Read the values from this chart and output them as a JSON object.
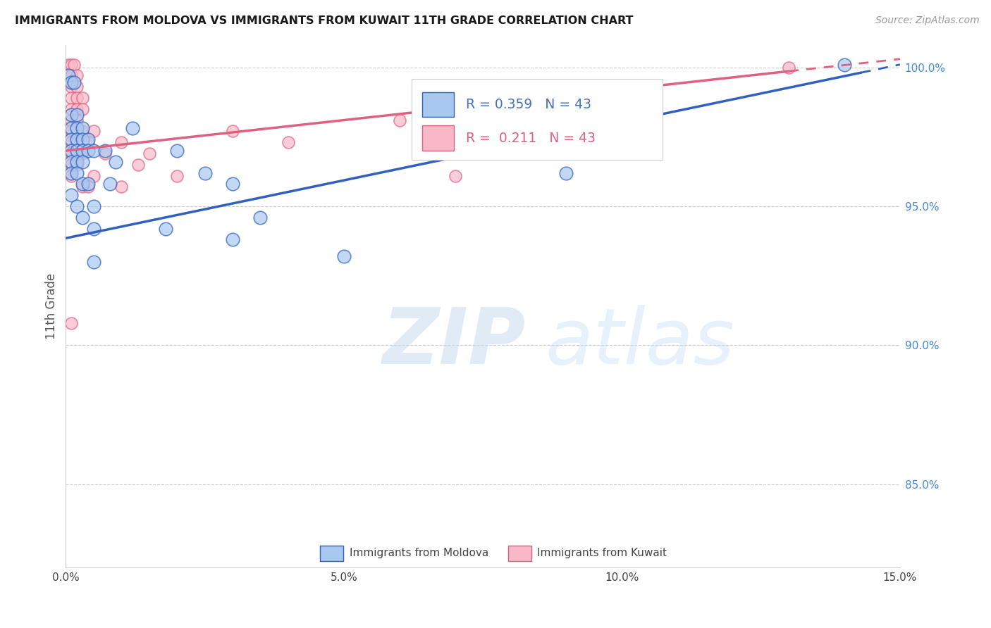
{
  "title": "IMMIGRANTS FROM MOLDOVA VS IMMIGRANTS FROM KUWAIT 11TH GRADE CORRELATION CHART",
  "source": "Source: ZipAtlas.com",
  "ylabel": "11th Grade",
  "x_min": 0.0,
  "x_max": 0.15,
  "y_min": 0.82,
  "y_max": 1.008,
  "x_ticks": [
    0.0,
    0.025,
    0.05,
    0.075,
    0.1,
    0.125,
    0.15
  ],
  "x_tick_labels": [
    "0.0%",
    "",
    "5.0%",
    "",
    "10.0%",
    "",
    "15.0%"
  ],
  "y_ticks": [
    0.85,
    0.9,
    0.95,
    1.0
  ],
  "y_tick_labels": [
    "85.0%",
    "90.0%",
    "95.0%",
    "100.0%"
  ],
  "moldova_color": "#A8C8F0",
  "kuwait_color": "#F8B8C8",
  "line_moldova_color": "#3060C0",
  "line_kuwait_color": "#E06080",
  "R_moldova": 0.359,
  "N_moldova": 43,
  "R_kuwait": 0.211,
  "N_kuwait": 43,
  "legend_moldova": "Immigrants from Moldova",
  "legend_kuwait": "Immigrants from Kuwait",
  "background_color": "#ffffff",
  "watermark_zip": "ZIP",
  "watermark_atlas": "atlas",
  "moldova_line_x0": 0.0,
  "moldova_line_y0": 0.9385,
  "moldova_line_x1": 0.15,
  "moldova_line_y1": 1.001,
  "moldova_line_solid_x1": 0.143,
  "kuwait_line_x0": 0.0,
  "kuwait_line_y0": 0.97,
  "kuwait_line_x1": 0.15,
  "kuwait_line_y1": 1.003,
  "kuwait_line_solid_x1": 0.13,
  "moldova_points": [
    [
      0.0005,
      0.997
    ],
    [
      0.001,
      0.9945
    ],
    [
      0.0015,
      0.9945
    ],
    [
      0.001,
      0.983
    ],
    [
      0.002,
      0.983
    ],
    [
      0.001,
      0.978
    ],
    [
      0.002,
      0.978
    ],
    [
      0.003,
      0.978
    ],
    [
      0.001,
      0.974
    ],
    [
      0.002,
      0.974
    ],
    [
      0.003,
      0.974
    ],
    [
      0.004,
      0.974
    ],
    [
      0.001,
      0.97
    ],
    [
      0.002,
      0.97
    ],
    [
      0.003,
      0.97
    ],
    [
      0.004,
      0.97
    ],
    [
      0.005,
      0.97
    ],
    [
      0.001,
      0.966
    ],
    [
      0.002,
      0.966
    ],
    [
      0.003,
      0.966
    ],
    [
      0.001,
      0.962
    ],
    [
      0.002,
      0.962
    ],
    [
      0.003,
      0.958
    ],
    [
      0.004,
      0.958
    ],
    [
      0.001,
      0.954
    ],
    [
      0.002,
      0.95
    ],
    [
      0.005,
      0.95
    ],
    [
      0.003,
      0.946
    ],
    [
      0.005,
      0.942
    ],
    [
      0.007,
      0.97
    ],
    [
      0.009,
      0.966
    ],
    [
      0.012,
      0.978
    ],
    [
      0.02,
      0.97
    ],
    [
      0.025,
      0.962
    ],
    [
      0.03,
      0.958
    ],
    [
      0.035,
      0.946
    ],
    [
      0.03,
      0.938
    ],
    [
      0.005,
      0.93
    ],
    [
      0.018,
      0.942
    ],
    [
      0.008,
      0.958
    ],
    [
      0.05,
      0.932
    ],
    [
      0.09,
      0.962
    ],
    [
      0.14,
      1.001
    ]
  ],
  "kuwait_points": [
    [
      0.0005,
      1.001
    ],
    [
      0.001,
      1.001
    ],
    [
      0.0015,
      1.001
    ],
    [
      0.001,
      0.997
    ],
    [
      0.002,
      0.997
    ],
    [
      0.001,
      0.993
    ],
    [
      0.002,
      0.993
    ],
    [
      0.001,
      0.989
    ],
    [
      0.002,
      0.989
    ],
    [
      0.003,
      0.989
    ],
    [
      0.001,
      0.985
    ],
    [
      0.002,
      0.985
    ],
    [
      0.003,
      0.985
    ],
    [
      0.001,
      0.981
    ],
    [
      0.002,
      0.981
    ],
    [
      0.001,
      0.977
    ],
    [
      0.003,
      0.977
    ],
    [
      0.005,
      0.977
    ],
    [
      0.001,
      0.973
    ],
    [
      0.002,
      0.973
    ],
    [
      0.004,
      0.973
    ],
    [
      0.001,
      0.969
    ],
    [
      0.002,
      0.969
    ],
    [
      0.003,
      0.969
    ],
    [
      0.001,
      0.965
    ],
    [
      0.002,
      0.965
    ],
    [
      0.001,
      0.961
    ],
    [
      0.003,
      0.957
    ],
    [
      0.004,
      0.957
    ],
    [
      0.005,
      0.961
    ],
    [
      0.007,
      0.969
    ],
    [
      0.01,
      0.973
    ],
    [
      0.01,
      0.957
    ],
    [
      0.013,
      0.965
    ],
    [
      0.015,
      0.969
    ],
    [
      0.02,
      0.961
    ],
    [
      0.03,
      0.977
    ],
    [
      0.04,
      0.973
    ],
    [
      0.06,
      0.981
    ],
    [
      0.07,
      0.961
    ],
    [
      0.09,
      0.977
    ],
    [
      0.13,
      1.0
    ],
    [
      0.001,
      0.908
    ]
  ],
  "bubble_size_moldova": 180,
  "bubble_size_kuwait": 150
}
